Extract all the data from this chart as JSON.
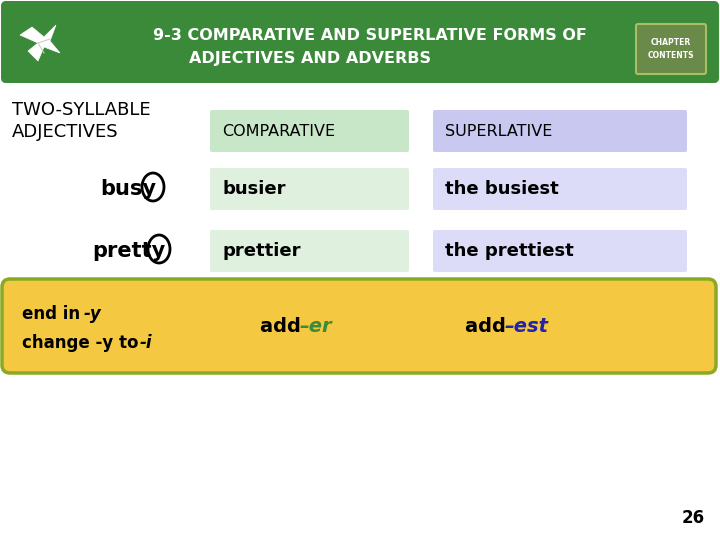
{
  "title_line1": "9-3 COMPARATIVE AND SUPERLATIVE FORMS OF",
  "title_line2": "ADJECTIVES AND ADVERBS",
  "header_bg": "#3a8a3a",
  "header_text_color": "#ffffff",
  "main_bg": "#ffffff",
  "col2_header": "COMPARATIVE",
  "col3_header": "SUPERLATIVE",
  "col2_header_bg": "#c8e6c8",
  "col3_header_bg": "#c8c8f0",
  "row1_col1": "busy",
  "row1_col2": "busier",
  "row1_col3": "the busiest",
  "row2_col1": "pretty",
  "row2_col2": "prettier",
  "row2_col3": "the prettiest",
  "row_col2_bg": "#dff0df",
  "row_col3_bg": "#dcdcf8",
  "box_bg": "#f5c842",
  "box_border": "#8aaa22",
  "box_er": "–er",
  "box_er_color": "#3a8a3a",
  "box_est": "–est",
  "box_est_color": "#2222aa",
  "page_num": "26",
  "chapter_btn_bg": "#6a8a4a",
  "chapter_btn_border": "#aac060"
}
